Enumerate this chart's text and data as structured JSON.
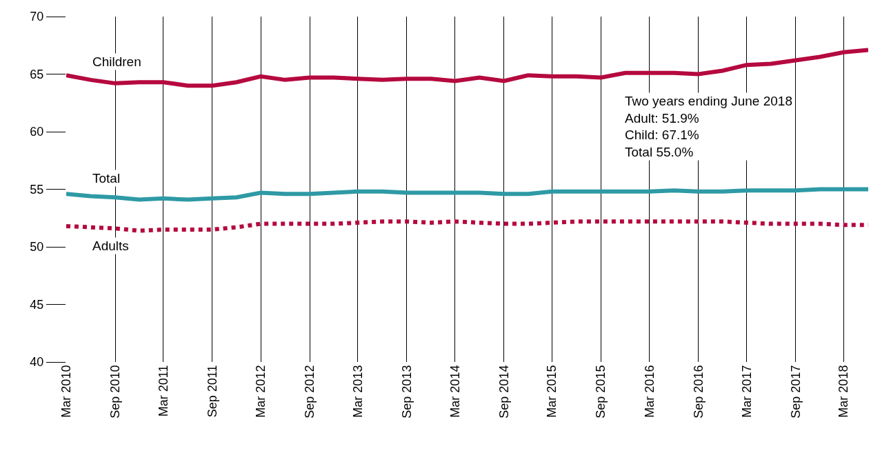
{
  "chart_data": {
    "type": "line",
    "x": [
      "2010-03",
      "2010-06",
      "2010-09",
      "2010-12",
      "2011-03",
      "2011-06",
      "2011-09",
      "2011-12",
      "2012-03",
      "2012-06",
      "2012-09",
      "2012-12",
      "2013-03",
      "2013-06",
      "2013-09",
      "2013-12",
      "2014-03",
      "2014-06",
      "2014-09",
      "2014-12",
      "2015-03",
      "2015-06",
      "2015-09",
      "2015-12",
      "2016-03",
      "2016-06",
      "2016-09",
      "2016-12",
      "2017-03",
      "2017-06",
      "2017-09",
      "2017-12",
      "2018-03",
      "2018-06"
    ],
    "series": [
      {
        "name": "Children",
        "color": "#b5093f",
        "line_style": "solid",
        "values": [
          64.9,
          64.5,
          64.2,
          64.3,
          64.3,
          64.0,
          64.0,
          64.3,
          64.8,
          64.5,
          64.7,
          64.7,
          64.6,
          64.5,
          64.6,
          64.6,
          64.4,
          64.7,
          64.4,
          64.9,
          64.8,
          64.8,
          64.7,
          65.1,
          65.1,
          65.1,
          65.0,
          65.3,
          65.8,
          65.9,
          66.2,
          66.5,
          66.9,
          67.1
        ]
      },
      {
        "name": "Total",
        "color": "#2e9aa5",
        "line_style": "solid",
        "values": [
          54.6,
          54.4,
          54.3,
          54.1,
          54.2,
          54.1,
          54.2,
          54.3,
          54.7,
          54.6,
          54.6,
          54.7,
          54.8,
          54.8,
          54.7,
          54.7,
          54.7,
          54.7,
          54.6,
          54.6,
          54.8,
          54.8,
          54.8,
          54.8,
          54.8,
          54.9,
          54.8,
          54.8,
          54.9,
          54.9,
          54.9,
          55.0,
          55.0,
          55.0
        ]
      },
      {
        "name": "Adults",
        "color": "#b5093f",
        "line_style": "dotted",
        "values": [
          51.8,
          51.7,
          51.6,
          51.4,
          51.5,
          51.5,
          51.5,
          51.7,
          52.0,
          52.0,
          52.0,
          52.0,
          52.1,
          52.2,
          52.2,
          52.1,
          52.2,
          52.1,
          52.0,
          52.0,
          52.1,
          52.2,
          52.2,
          52.2,
          52.2,
          52.2,
          52.2,
          52.2,
          52.1,
          52.0,
          52.0,
          52.0,
          51.9,
          51.9
        ]
      }
    ],
    "xlim": [
      "2010-03",
      "2018-06"
    ],
    "xticks": [
      {
        "value": "2010-03",
        "label": "Mar 2010"
      },
      {
        "value": "2010-09",
        "label": "Sep 2010"
      },
      {
        "value": "2011-03",
        "label": "Mar 2011"
      },
      {
        "value": "2011-09",
        "label": "Sep 2011"
      },
      {
        "value": "2012-03",
        "label": "Mar 2012"
      },
      {
        "value": "2012-09",
        "label": "Sep 2012"
      },
      {
        "value": "2013-03",
        "label": "Mar 2013"
      },
      {
        "value": "2013-09",
        "label": "Sep 2013"
      },
      {
        "value": "2014-03",
        "label": "Mar 2014"
      },
      {
        "value": "2014-09",
        "label": "Sep 2014"
      },
      {
        "value": "2015-03",
        "label": "Mar 2015"
      },
      {
        "value": "2015-09",
        "label": "Sep 2015"
      },
      {
        "value": "2016-03",
        "label": "Mar 2016"
      },
      {
        "value": "2016-09",
        "label": "Sep 2016"
      },
      {
        "value": "2017-03",
        "label": "Mar 2017"
      },
      {
        "value": "2017-09",
        "label": "Sep 2017"
      },
      {
        "value": "2018-03",
        "label": "Mar 2018"
      }
    ],
    "ylim": [
      40,
      70
    ],
    "yticks": [
      40,
      45,
      50,
      55,
      60,
      65,
      70
    ],
    "grid": "x",
    "legend": false,
    "marker": "none",
    "annotations": [
      "Two years ending June 2018\nAdult: 51.9%\nChild: 67.1%\nTotal 55.0%"
    ]
  }
}
